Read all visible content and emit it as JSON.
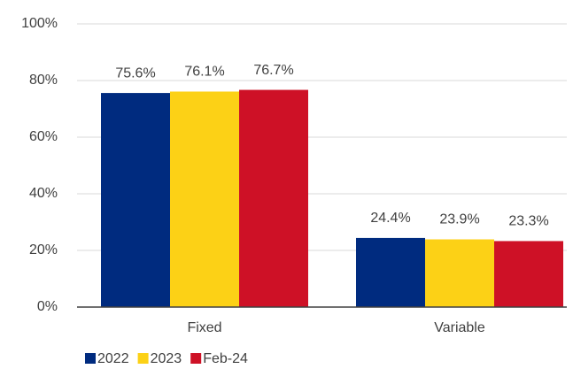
{
  "chart_data": {
    "type": "bar",
    "categories": [
      "Fixed",
      "Variable"
    ],
    "series": [
      {
        "name": "2022",
        "color": "#002b7f",
        "values": [
          75.6,
          24.4
        ],
        "value_labels": [
          "75.6%",
          "24.4%"
        ]
      },
      {
        "name": "2023",
        "color": "#fcd116",
        "values": [
          76.1,
          23.9
        ],
        "value_labels": [
          "76.1%",
          "23.9%"
        ]
      },
      {
        "name": "Feb-24",
        "color": "#ce1126",
        "values": [
          76.7,
          23.3
        ],
        "value_labels": [
          "76.7%",
          "23.3%"
        ]
      }
    ],
    "ylim": [
      0,
      100
    ],
    "yticks": [
      {
        "value": 0,
        "label": "0%"
      },
      {
        "value": 20,
        "label": "20%"
      },
      {
        "value": 40,
        "label": "40%"
      },
      {
        "value": 60,
        "label": "60%"
      },
      {
        "value": 80,
        "label": "80%"
      },
      {
        "value": 100,
        "label": "100%"
      }
    ],
    "grid": true,
    "legend": "bottom-left"
  }
}
